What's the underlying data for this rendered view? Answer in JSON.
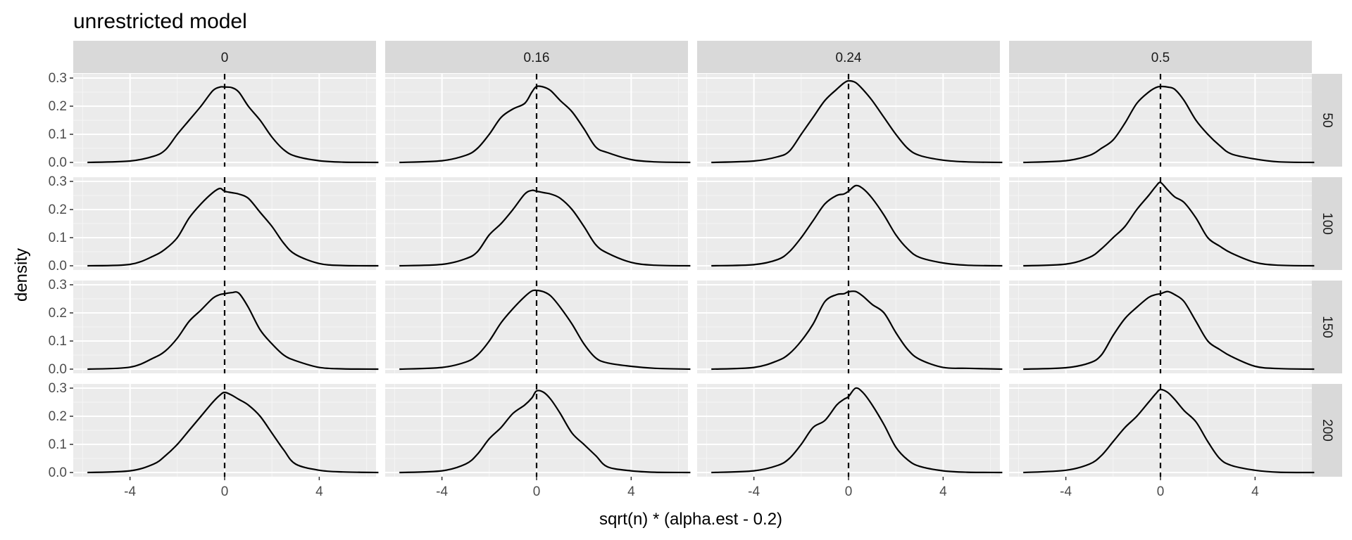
{
  "chart_data": {
    "type": "line",
    "subtype": "faceted-density",
    "title": "unrestricted model",
    "xlabel": "sqrt(n) * (alpha.est - 0.2)",
    "ylabel": "density",
    "xlim": [
      -6.4,
      6.4
    ],
    "ylim": [
      -0.015,
      0.315
    ],
    "x_ticks": [
      -4,
      0,
      4
    ],
    "x_tick_labels": [
      "-4",
      "0",
      "4"
    ],
    "y_ticks": [
      0.0,
      0.1,
      0.2,
      0.3
    ],
    "y_tick_labels": [
      "0.0",
      "0.1",
      "0.2",
      "0.3"
    ],
    "reference_line": {
      "x": 0,
      "style": "dashed"
    },
    "grid": true,
    "col_facets": [
      "0",
      "0.16",
      "0.24",
      "0.5"
    ],
    "row_facets": [
      "50",
      "100",
      "150",
      "200"
    ],
    "panels": [
      {
        "row": "50",
        "col": "0",
        "x": [
          -5.8,
          -4,
          -3,
          -2.5,
          -2,
          -1.5,
          -1,
          -0.5,
          -0.2,
          0,
          0.3,
          0.6,
          1,
          1.5,
          2,
          2.5,
          3,
          4,
          5,
          6.5
        ],
        "y": [
          0,
          0.005,
          0.022,
          0.045,
          0.1,
          0.15,
          0.2,
          0.255,
          0.268,
          0.268,
          0.266,
          0.25,
          0.2,
          0.15,
          0.09,
          0.045,
          0.022,
          0.006,
          0.001,
          0
        ]
      },
      {
        "row": "50",
        "col": "0.16",
        "x": [
          -5.8,
          -4,
          -3,
          -2.5,
          -2,
          -1.5,
          -1,
          -0.5,
          -0.2,
          0,
          0.3,
          0.6,
          1,
          1.5,
          2,
          2.5,
          3,
          4,
          5,
          6.5
        ],
        "y": [
          0,
          0.006,
          0.025,
          0.05,
          0.1,
          0.16,
          0.19,
          0.21,
          0.25,
          0.27,
          0.268,
          0.255,
          0.22,
          0.18,
          0.12,
          0.055,
          0.035,
          0.01,
          0.002,
          0
        ]
      },
      {
        "row": "50",
        "col": "0.24",
        "x": [
          -5.8,
          -4,
          -3,
          -2.5,
          -2,
          -1.5,
          -1,
          -0.5,
          -0.2,
          0,
          0.3,
          0.6,
          1,
          1.5,
          2,
          2.5,
          3,
          4,
          5,
          6.5
        ],
        "y": [
          0,
          0.005,
          0.02,
          0.04,
          0.1,
          0.16,
          0.22,
          0.26,
          0.282,
          0.29,
          0.284,
          0.26,
          0.22,
          0.16,
          0.1,
          0.05,
          0.025,
          0.008,
          0.002,
          0
        ]
      },
      {
        "row": "50",
        "col": "0.5",
        "x": [
          -5.8,
          -4,
          -3,
          -2.5,
          -2,
          -1.5,
          -1,
          -0.5,
          -0.2,
          0,
          0.3,
          0.6,
          1,
          1.5,
          2,
          2.5,
          3,
          4,
          5,
          6.5
        ],
        "y": [
          0,
          0.006,
          0.025,
          0.05,
          0.08,
          0.14,
          0.21,
          0.25,
          0.266,
          0.27,
          0.268,
          0.26,
          0.22,
          0.15,
          0.1,
          0.06,
          0.03,
          0.012,
          0.002,
          0
        ]
      },
      {
        "row": "100",
        "col": "0",
        "x": [
          -5.8,
          -4,
          -3,
          -2.5,
          -2,
          -1.5,
          -1,
          -0.5,
          -0.2,
          0,
          0.3,
          0.6,
          1,
          1.5,
          2,
          2.5,
          3,
          4,
          5,
          6.5
        ],
        "y": [
          0,
          0.005,
          0.035,
          0.06,
          0.1,
          0.17,
          0.22,
          0.26,
          0.275,
          0.265,
          0.26,
          0.255,
          0.24,
          0.19,
          0.14,
          0.08,
          0.04,
          0.008,
          0.001,
          0
        ]
      },
      {
        "row": "100",
        "col": "0.16",
        "x": [
          -5.8,
          -4,
          -3,
          -2.5,
          -2,
          -1.5,
          -1,
          -0.5,
          -0.2,
          0,
          0.3,
          0.6,
          1,
          1.5,
          2,
          2.5,
          3,
          4,
          5,
          6.5
        ],
        "y": [
          0,
          0.005,
          0.025,
          0.05,
          0.11,
          0.15,
          0.2,
          0.255,
          0.268,
          0.265,
          0.26,
          0.255,
          0.24,
          0.2,
          0.14,
          0.075,
          0.045,
          0.012,
          0.002,
          0
        ]
      },
      {
        "row": "100",
        "col": "0.24",
        "x": [
          -5.8,
          -4,
          -3,
          -2.5,
          -2,
          -1.5,
          -1,
          -0.5,
          -0.2,
          0,
          0.3,
          0.6,
          1,
          1.5,
          2,
          2.5,
          3,
          4,
          5,
          6.5
        ],
        "y": [
          0,
          0.004,
          0.022,
          0.05,
          0.1,
          0.16,
          0.22,
          0.25,
          0.255,
          0.265,
          0.285,
          0.275,
          0.24,
          0.18,
          0.11,
          0.06,
          0.03,
          0.01,
          0.002,
          0
        ]
      },
      {
        "row": "100",
        "col": "0.5",
        "x": [
          -5.8,
          -4,
          -3,
          -2.5,
          -2,
          -1.5,
          -1,
          -0.5,
          -0.2,
          0,
          0.3,
          0.6,
          1,
          1.5,
          2,
          2.5,
          3,
          4,
          5,
          6.5
        ],
        "y": [
          0,
          0.006,
          0.03,
          0.06,
          0.1,
          0.14,
          0.2,
          0.25,
          0.282,
          0.296,
          0.27,
          0.245,
          0.225,
          0.17,
          0.1,
          0.07,
          0.045,
          0.012,
          0.002,
          0
        ]
      },
      {
        "row": "150",
        "col": "0",
        "x": [
          -5.8,
          -4,
          -3,
          -2.5,
          -2,
          -1.5,
          -1,
          -0.5,
          -0.2,
          0,
          0.3,
          0.6,
          1,
          1.5,
          2,
          2.5,
          3,
          4,
          5,
          6.5
        ],
        "y": [
          0,
          0.007,
          0.04,
          0.065,
          0.11,
          0.17,
          0.21,
          0.252,
          0.265,
          0.268,
          0.272,
          0.27,
          0.22,
          0.14,
          0.09,
          0.05,
          0.03,
          0.006,
          0.001,
          0
        ]
      },
      {
        "row": "150",
        "col": "0.16",
        "x": [
          -5.8,
          -4,
          -3,
          -2.5,
          -2,
          -1.5,
          -1,
          -0.5,
          -0.2,
          0,
          0.3,
          0.6,
          1,
          1.5,
          2,
          2.5,
          3,
          4,
          5,
          6.5
        ],
        "y": [
          0,
          0.006,
          0.025,
          0.05,
          0.1,
          0.165,
          0.215,
          0.258,
          0.278,
          0.28,
          0.275,
          0.26,
          0.22,
          0.16,
          0.09,
          0.04,
          0.022,
          0.01,
          0.003,
          0
        ]
      },
      {
        "row": "150",
        "col": "0.24",
        "x": [
          -5.8,
          -4,
          -3,
          -2.5,
          -2,
          -1.5,
          -1,
          -0.5,
          -0.2,
          0,
          0.3,
          0.6,
          1,
          1.5,
          2,
          2.5,
          3,
          4,
          5,
          6.5
        ],
        "y": [
          0,
          0.006,
          0.03,
          0.055,
          0.1,
          0.16,
          0.24,
          0.265,
          0.268,
          0.275,
          0.276,
          0.26,
          0.23,
          0.2,
          0.13,
          0.07,
          0.035,
          0.006,
          0.003,
          0
        ]
      },
      {
        "row": "150",
        "col": "0.5",
        "x": [
          -5.8,
          -4,
          -3,
          -2.5,
          -2,
          -1.5,
          -1,
          -0.5,
          -0.2,
          0,
          0.3,
          0.6,
          1,
          1.5,
          2,
          2.5,
          3,
          4,
          5,
          6.5
        ],
        "y": [
          0,
          0.005,
          0.022,
          0.05,
          0.12,
          0.18,
          0.22,
          0.255,
          0.265,
          0.268,
          0.276,
          0.265,
          0.24,
          0.17,
          0.1,
          0.07,
          0.045,
          0.01,
          0.002,
          0
        ]
      },
      {
        "row": "200",
        "col": "0",
        "x": [
          -5.8,
          -4,
          -3,
          -2.5,
          -2,
          -1.5,
          -1,
          -0.5,
          -0.2,
          0,
          0.3,
          0.6,
          1,
          1.5,
          2,
          2.5,
          3,
          4,
          5,
          6.5
        ],
        "y": [
          0,
          0.006,
          0.03,
          0.06,
          0.1,
          0.15,
          0.2,
          0.25,
          0.275,
          0.285,
          0.275,
          0.26,
          0.24,
          0.2,
          0.14,
          0.08,
          0.03,
          0.008,
          0.002,
          0
        ]
      },
      {
        "row": "200",
        "col": "0.16",
        "x": [
          -5.8,
          -4,
          -3,
          -2.5,
          -2,
          -1.5,
          -1,
          -0.5,
          -0.2,
          0,
          0.3,
          0.6,
          1,
          1.5,
          2,
          2.5,
          3,
          4,
          5,
          6.5
        ],
        "y": [
          0,
          0.006,
          0.03,
          0.065,
          0.12,
          0.16,
          0.21,
          0.24,
          0.265,
          0.29,
          0.285,
          0.26,
          0.21,
          0.14,
          0.1,
          0.06,
          0.02,
          0.006,
          0.001,
          0
        ]
      },
      {
        "row": "200",
        "col": "0.24",
        "x": [
          -5.8,
          -4,
          -3,
          -2.5,
          -2,
          -1.5,
          -1,
          -0.5,
          -0.2,
          0,
          0.3,
          0.6,
          1,
          1.5,
          2,
          2.5,
          3,
          4,
          5,
          6.5
        ],
        "y": [
          0,
          0.006,
          0.025,
          0.05,
          0.1,
          0.16,
          0.185,
          0.24,
          0.26,
          0.27,
          0.3,
          0.285,
          0.24,
          0.17,
          0.09,
          0.045,
          0.022,
          0.006,
          0.001,
          0
        ]
      },
      {
        "row": "200",
        "col": "0.5",
        "x": [
          -5.8,
          -4,
          -3,
          -2.5,
          -2,
          -1.5,
          -1,
          -0.5,
          -0.2,
          0,
          0.3,
          0.6,
          1,
          1.5,
          2,
          2.5,
          3,
          4,
          5,
          6.5
        ],
        "y": [
          0,
          0.008,
          0.03,
          0.06,
          0.11,
          0.16,
          0.2,
          0.25,
          0.28,
          0.295,
          0.285,
          0.26,
          0.22,
          0.18,
          0.11,
          0.05,
          0.025,
          0.008,
          0.001,
          0
        ]
      }
    ]
  },
  "colors": {
    "page_background": "#ffffff",
    "panel_background": "#ebebeb",
    "strip_background": "#d9d9d9",
    "grid_major": "#ffffff",
    "grid_minor": "#f5f5f5",
    "line": "#000000",
    "tick_text": "#4d4d4d",
    "strip_text": "#1a1a1a"
  }
}
